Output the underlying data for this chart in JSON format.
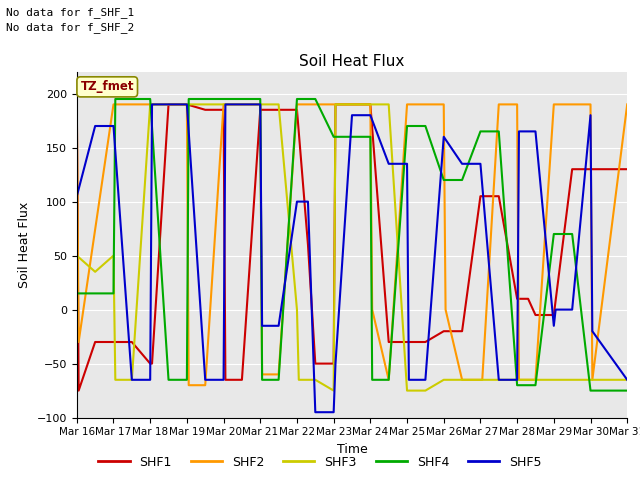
{
  "title": "Soil Heat Flux",
  "ylabel": "Soil Heat Flux",
  "xlabel": "Time",
  "no_data_text": [
    "No data for f_SHF_1",
    "No data for f_SHF_2"
  ],
  "legend_label": "TZ_fmet",
  "ylim": [
    -100,
    220
  ],
  "yticks": [
    -100,
    -50,
    0,
    50,
    100,
    150,
    200
  ],
  "fig_bg": "#ffffff",
  "plot_bg": "#e8e8e8",
  "series": {
    "SHF1": {
      "color": "#cc0000",
      "dates": [
        16,
        16.05,
        16.5,
        17,
        17.5,
        18,
        18.05,
        18.5,
        19,
        19.5,
        20,
        20.05,
        20.5,
        21,
        21.5,
        22,
        22.3,
        22.5,
        23,
        23.05,
        23.5,
        24,
        24.5,
        25,
        25.5,
        26,
        26.5,
        27,
        27.5,
        28,
        28.3,
        28.5,
        29,
        29.5,
        30,
        30.5,
        31
      ],
      "values": [
        195,
        -75,
        -30,
        -30,
        -30,
        -50,
        -50,
        190,
        190,
        185,
        185,
        -65,
        -65,
        185,
        185,
        185,
        60,
        -50,
        -50,
        190,
        190,
        190,
        -30,
        -30,
        -30,
        -20,
        -20,
        105,
        105,
        10,
        10,
        -5,
        -5,
        130,
        130,
        130,
        130
      ]
    },
    "SHF2": {
      "color": "#ff9900",
      "dates": [
        16,
        16.05,
        17,
        17.5,
        18,
        18.5,
        19,
        19.05,
        19.5,
        20,
        20.5,
        21,
        21.05,
        21.5,
        22,
        22.5,
        23,
        23.5,
        24,
        24.05,
        24.5,
        25,
        25.5,
        26,
        26.05,
        26.5,
        27,
        27.05,
        27.5,
        28,
        28.05,
        28.5,
        29,
        29.5,
        30,
        30.05,
        31
      ],
      "values": [
        190,
        -30,
        190,
        190,
        190,
        190,
        190,
        -70,
        -70,
        190,
        190,
        190,
        -60,
        -60,
        190,
        190,
        190,
        190,
        190,
        0,
        -65,
        190,
        190,
        190,
        0,
        -65,
        -65,
        -65,
        190,
        190,
        -65,
        -65,
        190,
        190,
        190,
        -65,
        190
      ]
    },
    "SHF3": {
      "color": "#cccc00",
      "dates": [
        16,
        16.5,
        17,
        17.05,
        17.5,
        18,
        18.5,
        19,
        19.5,
        20,
        20.5,
        21,
        21.5,
        22,
        22.05,
        22.5,
        23,
        23.05,
        23.5,
        24,
        24.5,
        25,
        25.05,
        25.5,
        26,
        26.5,
        27,
        27.5,
        28,
        28.5,
        29,
        29.5,
        30,
        30.5,
        31
      ],
      "values": [
        50,
        35,
        50,
        -65,
        -65,
        190,
        190,
        190,
        190,
        190,
        190,
        190,
        190,
        0,
        -65,
        -65,
        -75,
        190,
        190,
        190,
        190,
        -75,
        -75,
        -75,
        -65,
        -65,
        -65,
        -65,
        -65,
        -65,
        -65,
        -65,
        -65,
        -65,
        -65
      ]
    },
    "SHF4": {
      "color": "#00aa00",
      "dates": [
        16,
        16.5,
        17,
        17.05,
        17.5,
        18,
        18.5,
        19,
        19.05,
        19.5,
        20,
        20.5,
        21,
        21.05,
        21.5,
        22,
        22.5,
        23,
        23.5,
        24,
        24.05,
        24.5,
        25,
        25.5,
        26,
        26.3,
        26.5,
        27,
        27.5,
        28,
        28.05,
        28.5,
        29,
        29.5,
        30,
        30.05,
        31
      ],
      "values": [
        15,
        15,
        15,
        195,
        195,
        195,
        -65,
        -65,
        195,
        195,
        195,
        195,
        195,
        -65,
        -65,
        195,
        195,
        160,
        160,
        160,
        -65,
        -65,
        170,
        170,
        120,
        120,
        120,
        165,
        165,
        -70,
        -70,
        -70,
        70,
        70,
        -75,
        -75,
        -75
      ]
    },
    "SHF5": {
      "color": "#0000cc",
      "dates": [
        16,
        16.5,
        17,
        17.5,
        18,
        18.05,
        18.5,
        19,
        19.5,
        20,
        20.05,
        20.5,
        21,
        21.05,
        21.5,
        22,
        22.3,
        22.5,
        23,
        23.05,
        23.5,
        24,
        24.5,
        25,
        25.05,
        25.5,
        26,
        26.5,
        27,
        27.5,
        28,
        28.05,
        28.5,
        29,
        29.05,
        29.5,
        30,
        30.05,
        31
      ],
      "values": [
        105,
        170,
        170,
        -65,
        -65,
        190,
        190,
        190,
        -65,
        -65,
        190,
        190,
        190,
        -15,
        -15,
        100,
        100,
        -95,
        -95,
        -50,
        180,
        180,
        135,
        135,
        -65,
        -65,
        160,
        135,
        135,
        -65,
        -65,
        165,
        165,
        -15,
        0,
        0,
        180,
        -20,
        -65
      ]
    }
  },
  "xtick_labels": [
    "Mar 16",
    "Mar 17",
    "Mar 18",
    "Mar 19",
    "Mar 20",
    "Mar 21",
    "Mar 22",
    "Mar 23",
    "Mar 24",
    "Mar 25",
    "Mar 26",
    "Mar 27",
    "Mar 28",
    "Mar 29",
    "Mar 30",
    "Mar 31"
  ],
  "xtick_positions": [
    16,
    17,
    18,
    19,
    20,
    21,
    22,
    23,
    24,
    25,
    26,
    27,
    28,
    29,
    30,
    31
  ]
}
